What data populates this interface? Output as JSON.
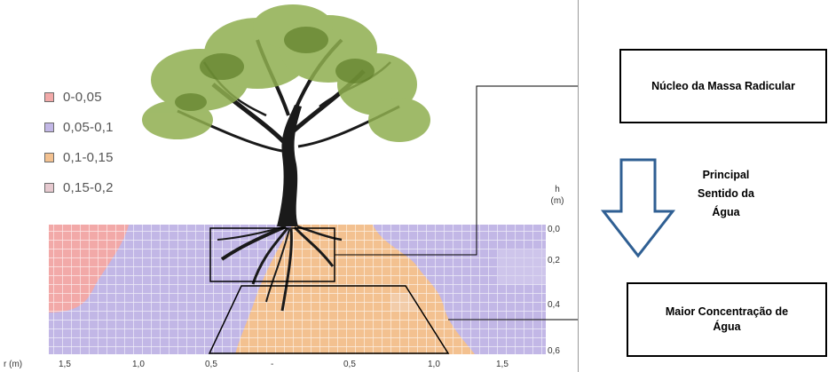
{
  "legend": {
    "items": [
      {
        "label": "0-0,05",
        "color": "#f2a9a8"
      },
      {
        "label": "0,05-0,1",
        "color": "#c2b7e6"
      },
      {
        "label": "0,1-0,15",
        "color": "#f3c190"
      },
      {
        "label": "0,15-0,2",
        "color": "#e6c9cf"
      }
    ]
  },
  "axes": {
    "x_title": "r (m)",
    "x_ticks": [
      "1,5",
      "1,0",
      "0,5",
      "-",
      "0,5",
      "1,0",
      "1,5"
    ],
    "y_title_line1": "h",
    "y_title_line2": "(m)",
    "y_ticks": [
      "0,0",
      "0,2",
      "0,4",
      "0,6"
    ]
  },
  "annotations": {
    "root_core": "Núcleo da Massa Radicular",
    "main_direction": [
      "Principal",
      "Sentido da",
      "Água"
    ],
    "max_water": [
      "Maior Concentração de",
      "Água"
    ]
  },
  "colors": {
    "purple": "#c2b7e6",
    "pink": "#f2a9a8",
    "orange": "#f3c190",
    "arrow": "#2f5f93"
  }
}
